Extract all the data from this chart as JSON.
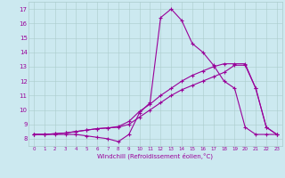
{
  "xlabel": "Windchill (Refroidissement éolien,°C)",
  "x_ticks": [
    0,
    1,
    2,
    3,
    4,
    5,
    6,
    7,
    8,
    9,
    10,
    11,
    12,
    13,
    14,
    15,
    16,
    17,
    18,
    19,
    20,
    21,
    22,
    23
  ],
  "ylim": [
    7.5,
    17.5
  ],
  "xlim": [
    -0.5,
    23.5
  ],
  "y_ticks": [
    8,
    9,
    10,
    11,
    12,
    13,
    14,
    15,
    16,
    17
  ],
  "bg_color": "#cce9f0",
  "line_color": "#990099",
  "grid_color": "#aacccc",
  "line1_y": [
    8.3,
    8.3,
    8.3,
    8.3,
    8.3,
    8.2,
    8.1,
    8.0,
    7.8,
    8.3,
    9.8,
    10.5,
    16.4,
    17.0,
    16.2,
    14.6,
    14.0,
    13.1,
    12.0,
    11.5,
    8.8,
    8.3,
    8.3,
    8.3
  ],
  "line2_y": [
    8.3,
    8.3,
    8.35,
    8.4,
    8.5,
    8.6,
    8.7,
    8.75,
    8.8,
    9.0,
    9.5,
    10.0,
    10.5,
    11.0,
    11.4,
    11.7,
    12.0,
    12.3,
    12.6,
    13.1,
    13.1,
    11.5,
    8.8,
    8.3
  ],
  "line3_y": [
    8.3,
    8.3,
    8.35,
    8.4,
    8.5,
    8.6,
    8.7,
    8.75,
    8.85,
    9.2,
    9.9,
    10.4,
    11.0,
    11.5,
    12.0,
    12.4,
    12.7,
    13.0,
    13.2,
    13.2,
    13.2,
    11.5,
    8.8,
    8.3
  ]
}
